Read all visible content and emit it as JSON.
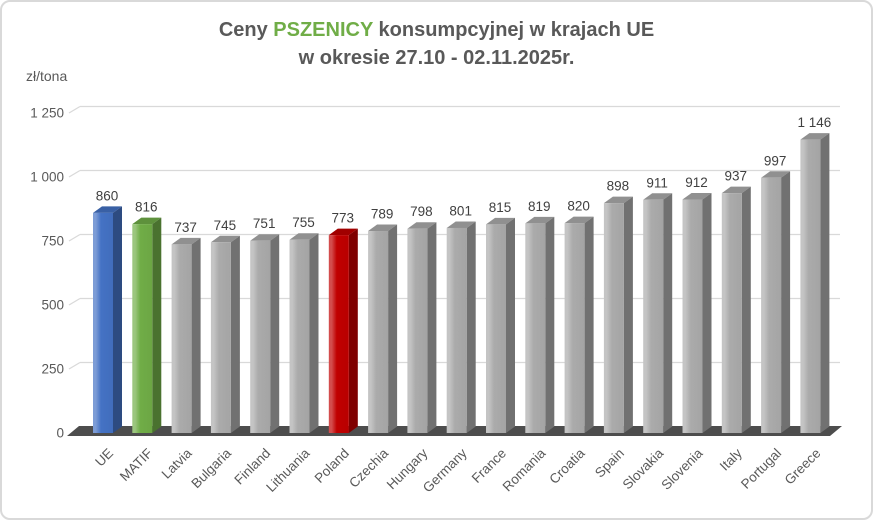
{
  "title": {
    "prefix": "Ceny ",
    "highlight": "PSZENICY",
    "suffix": " konsumpcyjnej w krajach UE",
    "line2": "w okresie 27.10 - 02.11.2025r.",
    "highlight_color": "#70AD47",
    "text_color": "#595959"
  },
  "chart_data": {
    "type": "bar",
    "style": "3d-column",
    "title": "Ceny PSZENICY konsumpcyjnej w krajach UE w okresie 27.10 - 02.11.2025r.",
    "ylabel": "zł/tona",
    "xlabel": "",
    "ylim": [
      0,
      1250
    ],
    "yticks": [
      0,
      250,
      500,
      750,
      1000,
      1250
    ],
    "ytick_labels": [
      "0",
      "250",
      "500",
      "750",
      "1 000",
      "1 250"
    ],
    "grid": true,
    "legend": "none",
    "categories": [
      "UE",
      "MATIF",
      "Latvia",
      "Bulgaria",
      "Finland",
      "Lithuania",
      "Poland",
      "Czechia",
      "Hungary",
      "Germany",
      "France",
      "Romania",
      "Croatia",
      "Spain",
      "Slovakia",
      "Slovenia",
      "Italy",
      "Portugal",
      "Greece"
    ],
    "values": [
      860,
      816,
      737,
      745,
      751,
      755,
      773,
      789,
      798,
      801,
      815,
      819,
      820,
      898,
      911,
      912,
      937,
      997,
      1146
    ],
    "value_labels": [
      "860",
      "816",
      "737",
      "745",
      "751",
      "755",
      "773",
      "789",
      "798",
      "801",
      "815",
      "819",
      "820",
      "898",
      "911",
      "912",
      "937",
      "997",
      "1 146"
    ],
    "bar_colors": {
      "UE": "#4472C4",
      "MATIF": "#70AD47",
      "Poland": "#C00000",
      "default": "#ABABAB"
    },
    "colors": {
      "gridline": "#D9D9D9",
      "floor": "#4D4D4D",
      "axis_text": "#595959",
      "value_text": "#404040"
    }
  }
}
